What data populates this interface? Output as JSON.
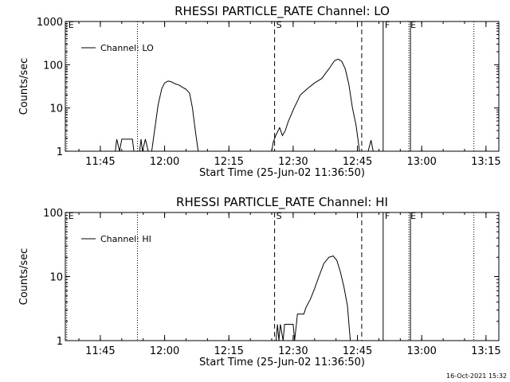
{
  "footer": {
    "timestamp": "16-Oct-2021 15:32"
  },
  "chart_data": [
    {
      "type": "line",
      "title": "RHESSI PARTICLE_RATE Channel: LO",
      "xlabel": "Start Time (25-Jun-02 11:36:50)",
      "ylabel": "Counts/sec",
      "yscale": "log",
      "ylim": [
        1,
        1000
      ],
      "xlim": [
        "11:36:50",
        "13:18:00"
      ],
      "x_ticks": [
        "11:45",
        "12:00",
        "12:15",
        "12:30",
        "12:45",
        "13:00",
        "13:15"
      ],
      "y_ticks": [
        "1",
        "10",
        "100",
        "1000"
      ],
      "legend": {
        "position": "top-left",
        "entries": [
          "Channel: LO"
        ]
      },
      "markers": [
        {
          "label": "E",
          "time": "11:37:10",
          "style": "dotted"
        },
        {
          "label": "",
          "time": "11:53:40",
          "style": "dotted"
        },
        {
          "label": "S",
          "time": "12:25:40",
          "style": "dashed"
        },
        {
          "label": "",
          "time": "12:46:00",
          "style": "dashed"
        },
        {
          "label": "F",
          "time": "12:51:00",
          "style": "solid"
        },
        {
          "label": "E",
          "time": "12:57:00",
          "style": "dotted-solid"
        },
        {
          "label": "",
          "time": "13:12:10",
          "style": "dotted"
        }
      ],
      "series": [
        {
          "name": "Channel: LO",
          "points": [
            [
              "11:48:30",
              1
            ],
            [
              "11:48:50",
              1.9
            ],
            [
              "11:49:30",
              1
            ],
            [
              "11:50:00",
              1.9
            ],
            [
              "11:52:30",
              1.9
            ],
            [
              "11:52:50",
              1
            ],
            [
              "11:54:10",
              1
            ],
            [
              "11:54:30",
              1.9
            ],
            [
              "11:54:50",
              1
            ],
            [
              "11:55:30",
              1.9
            ],
            [
              "11:56:10",
              1
            ],
            [
              "11:57:00",
              1
            ],
            [
              "11:57:50",
              4
            ],
            [
              "11:58:30",
              12
            ],
            [
              "11:59:20",
              28
            ],
            [
              "12:00:00",
              38
            ],
            [
              "12:00:50",
              42
            ],
            [
              "12:01:40",
              40
            ],
            [
              "12:02:30",
              36
            ],
            [
              "12:03:20",
              34
            ],
            [
              "12:04:10",
              30
            ],
            [
              "12:05:00",
              27
            ],
            [
              "12:05:50",
              22
            ],
            [
              "12:06:30",
              10
            ],
            [
              "12:07:10",
              3
            ],
            [
              "12:07:50",
              1
            ],
            [
              "12:25:00",
              1
            ],
            [
              "12:25:20",
              1.6
            ],
            [
              "12:26:00",
              2.4
            ],
            [
              "12:26:50",
              3.5
            ],
            [
              "12:27:30",
              2.3
            ],
            [
              "12:28:10",
              3
            ],
            [
              "12:28:50",
              4.8
            ],
            [
              "12:30:00",
              9
            ],
            [
              "12:31:40",
              20
            ],
            [
              "12:33:20",
              28
            ],
            [
              "12:35:00",
              38
            ],
            [
              "12:36:40",
              48
            ],
            [
              "12:38:20",
              80
            ],
            [
              "12:39:40",
              125
            ],
            [
              "12:40:30",
              135
            ],
            [
              "12:41:20",
              120
            ],
            [
              "12:42:10",
              80
            ],
            [
              "12:43:00",
              35
            ],
            [
              "12:43:50",
              10
            ],
            [
              "12:44:40",
              4
            ],
            [
              "12:45:30",
              1
            ],
            [
              "12:47:30",
              1
            ],
            [
              "12:48:10",
              1.8
            ],
            [
              "12:48:40",
              1
            ]
          ]
        }
      ]
    },
    {
      "type": "line",
      "title": "RHESSI PARTICLE_RATE Channel: HI",
      "xlabel": "Start Time (25-Jun-02 11:36:50)",
      "ylabel": "Counts/sec",
      "yscale": "log",
      "ylim": [
        1,
        100
      ],
      "xlim": [
        "11:36:50",
        "13:18:00"
      ],
      "x_ticks": [
        "11:45",
        "12:00",
        "12:15",
        "12:30",
        "12:45",
        "13:00",
        "13:15"
      ],
      "y_ticks": [
        "1",
        "10",
        "100"
      ],
      "legend": {
        "position": "top-left",
        "entries": [
          "Channel: HI"
        ]
      },
      "markers": [
        {
          "label": "E",
          "time": "11:37:10",
          "style": "dotted"
        },
        {
          "label": "",
          "time": "11:53:40",
          "style": "dotted"
        },
        {
          "label": "S",
          "time": "12:25:40",
          "style": "dashed"
        },
        {
          "label": "",
          "time": "12:46:00",
          "style": "dashed"
        },
        {
          "label": "F",
          "time": "12:51:00",
          "style": "solid"
        },
        {
          "label": "E",
          "time": "12:57:00",
          "style": "dotted-solid"
        },
        {
          "label": "",
          "time": "13:12:10",
          "style": "dotted"
        }
      ],
      "series": [
        {
          "name": "Channel: HI",
          "points": [
            [
              "12:26:00",
              1
            ],
            [
              "12:26:20",
              1.8
            ],
            [
              "12:26:40",
              1
            ],
            [
              "12:27:00",
              1.8
            ],
            [
              "12:27:40",
              1
            ],
            [
              "12:28:00",
              1.8
            ],
            [
              "12:30:00",
              1.8
            ],
            [
              "12:30:20",
              1
            ],
            [
              "12:31:00",
              2.6
            ],
            [
              "12:32:30",
              2.6
            ],
            [
              "12:33:00",
              3.3
            ],
            [
              "12:34:00",
              4.4
            ],
            [
              "12:35:00",
              6.5
            ],
            [
              "12:36:00",
              10
            ],
            [
              "12:37:10",
              16
            ],
            [
              "12:38:20",
              20
            ],
            [
              "12:39:20",
              21
            ],
            [
              "12:40:10",
              18
            ],
            [
              "12:41:00",
              12
            ],
            [
              "12:41:50",
              7
            ],
            [
              "12:42:40",
              3.5
            ],
            [
              "12:43:20",
              1
            ]
          ]
        }
      ]
    }
  ]
}
